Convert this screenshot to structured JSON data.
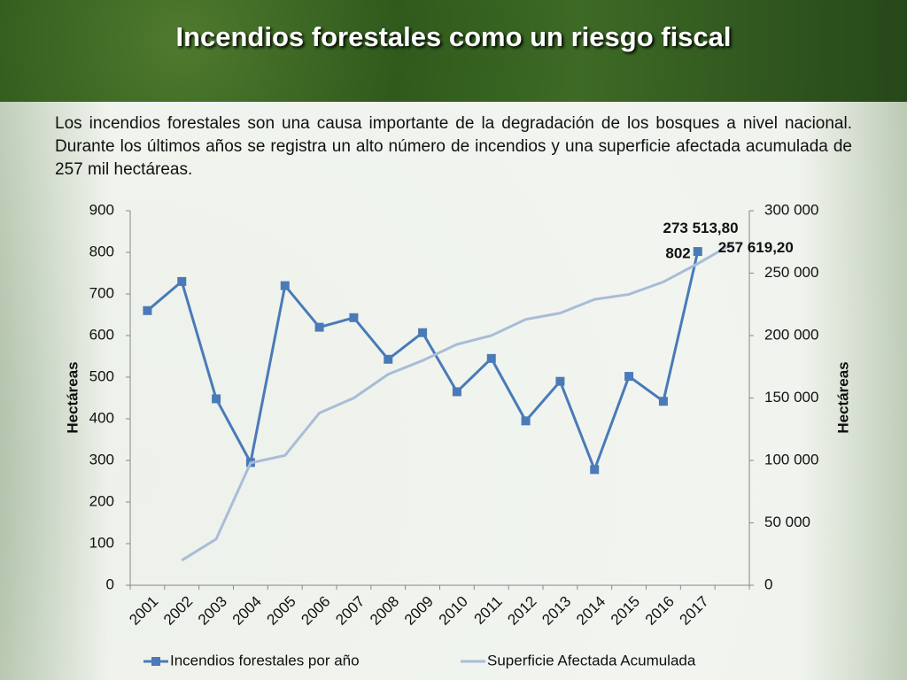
{
  "title": "Incendios forestales como un riesgo fiscal",
  "paragraph": "Los incendios forestales son una causa importante de la degradación de los bosques a nivel nacional.  Durante los últimos años se registra un alto número de incendios y una superficie afectada acumulada de 257 mil hectáreas.",
  "chart_data": {
    "type": "line",
    "categories": [
      "2001",
      "2002",
      "2003",
      "2004",
      "2005",
      "2006",
      "2007",
      "2008",
      "2009",
      "2010",
      "2011",
      "2012",
      "2013",
      "2014",
      "2015",
      "2016",
      "2017",
      null
    ],
    "series": [
      {
        "name": "Incendios forestales por año",
        "color": "#4a7ab8",
        "marker": "square",
        "values": [
          660,
          730,
          448,
          295,
          720,
          620,
          643,
          543,
          607,
          465,
          545,
          395,
          490,
          278,
          502,
          442,
          802,
          null
        ]
      },
      {
        "name": "Superficie Afectada Acumulada",
        "color": "#a9bcd8",
        "axis": "y2",
        "values": [
          null,
          20000,
          37000,
          98000,
          104000,
          138000,
          150000,
          169000,
          180000,
          193000,
          200000,
          213000,
          218000,
          229000,
          233000,
          243000,
          257619.2,
          273513.8
        ],
        "value_labels": [
          null,
          null,
          null,
          null,
          null,
          null,
          null,
          null,
          null,
          null,
          null,
          null,
          null,
          null,
          null,
          null,
          "257 619,20",
          "273 513,80"
        ]
      }
    ],
    "ylim": [
      0,
      900
    ],
    "yticks": [
      0,
      100,
      200,
      300,
      400,
      500,
      600,
      700,
      800,
      900
    ],
    "y2lim": [
      0,
      300000
    ],
    "y2ticks": [
      0,
      {
        "value": 50000,
        "label": "50 000"
      },
      {
        "value": 100000,
        "label": "100 000"
      },
      {
        "value": 150000,
        "label": "150 000"
      },
      {
        "value": 200000,
        "label": "200 000"
      },
      {
        "value": 250000,
        "label": "250 000"
      },
      {
        "value": 300000,
        "label": "300 000"
      }
    ],
    "ylabel": "Hectáreas",
    "y2label": "Hectáreas",
    "legend": "bottom"
  }
}
